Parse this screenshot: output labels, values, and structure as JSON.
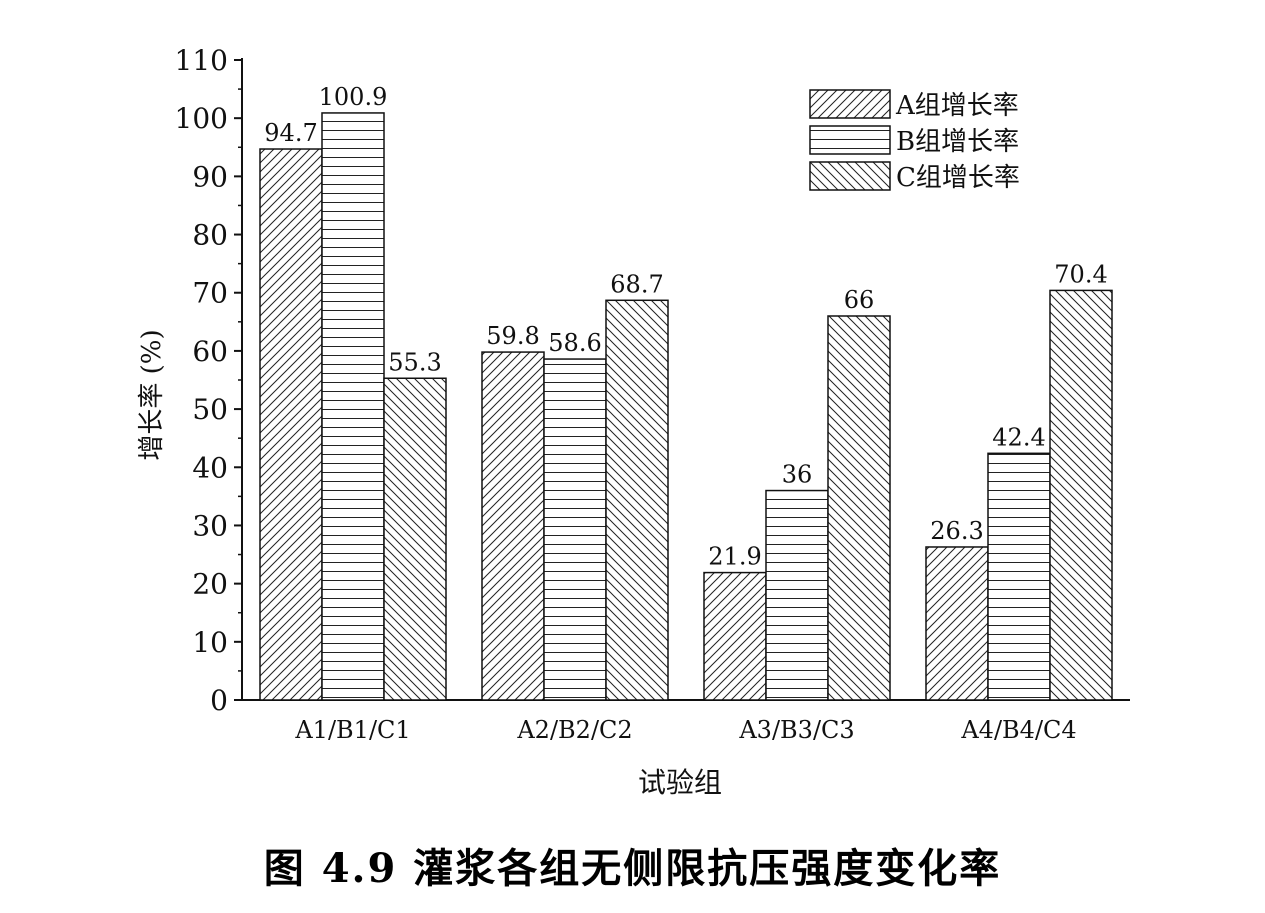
{
  "chart_data": {
    "type": "bar",
    "xlabel": "试验组",
    "ylabel": "增长率 (%)",
    "ylim": [
      0,
      110
    ],
    "yticks": [
      0,
      10,
      20,
      30,
      40,
      50,
      60,
      70,
      80,
      90,
      100,
      110
    ],
    "categories": [
      "A1/B1/C1",
      "A2/B2/C2",
      "A3/B3/C3",
      "A4/B4/C4"
    ],
    "series": [
      {
        "name": "A组增长率",
        "values": [
          94.7,
          59.8,
          21.9,
          26.3
        ],
        "labels": [
          "94.7",
          "59.8",
          "21.9",
          "26.3"
        ]
      },
      {
        "name": "B组增长率",
        "values": [
          100.9,
          58.6,
          36,
          42.4
        ],
        "labels": [
          "100.9",
          "58.6",
          "36",
          "42.4"
        ]
      },
      {
        "name": "C组增长率",
        "values": [
          55.3,
          68.7,
          66,
          70.4
        ],
        "labels": [
          "55.3",
          "68.7",
          "66",
          "70.4"
        ]
      }
    ],
    "legend_position": "top-right",
    "grid": false
  },
  "caption": {
    "text": "图 4.9  灌浆各组无侧限抗压强度变化率"
  }
}
